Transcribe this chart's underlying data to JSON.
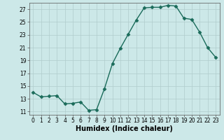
{
  "x": [
    0,
    1,
    2,
    3,
    4,
    5,
    6,
    7,
    8,
    9,
    10,
    11,
    12,
    13,
    14,
    15,
    16,
    17,
    18,
    19,
    20,
    21,
    22,
    23
  ],
  "y": [
    14.0,
    13.3,
    13.4,
    13.5,
    12.2,
    12.3,
    12.5,
    11.2,
    11.3,
    14.6,
    18.5,
    20.9,
    23.1,
    25.3,
    27.2,
    27.3,
    27.3,
    27.6,
    27.5,
    25.6,
    25.4,
    23.4,
    21.0,
    19.5
  ],
  "line_color": "#1a6b5a",
  "marker": "D",
  "marker_size": 2.5,
  "bg_color": "#cce8e8",
  "grid_color": "#b0cccc",
  "xlabel": "Humidex (Indice chaleur)",
  "xlim": [
    -0.5,
    23.5
  ],
  "ylim": [
    10.5,
    28.0
  ],
  "yticks": [
    11,
    13,
    15,
    17,
    19,
    21,
    23,
    25,
    27
  ],
  "xticks": [
    0,
    1,
    2,
    3,
    4,
    5,
    6,
    7,
    8,
    9,
    10,
    11,
    12,
    13,
    14,
    15,
    16,
    17,
    18,
    19,
    20,
    21,
    22,
    23
  ],
  "xtick_labels": [
    "0",
    "1",
    "2",
    "3",
    "4",
    "5",
    "6",
    "7",
    "8",
    "9",
    "10",
    "11",
    "12",
    "13",
    "14",
    "15",
    "16",
    "17",
    "18",
    "19",
    "20",
    "21",
    "22",
    "23"
  ],
  "tick_fontsize": 5.5,
  "xlabel_fontsize": 7,
  "line_width": 1.0
}
